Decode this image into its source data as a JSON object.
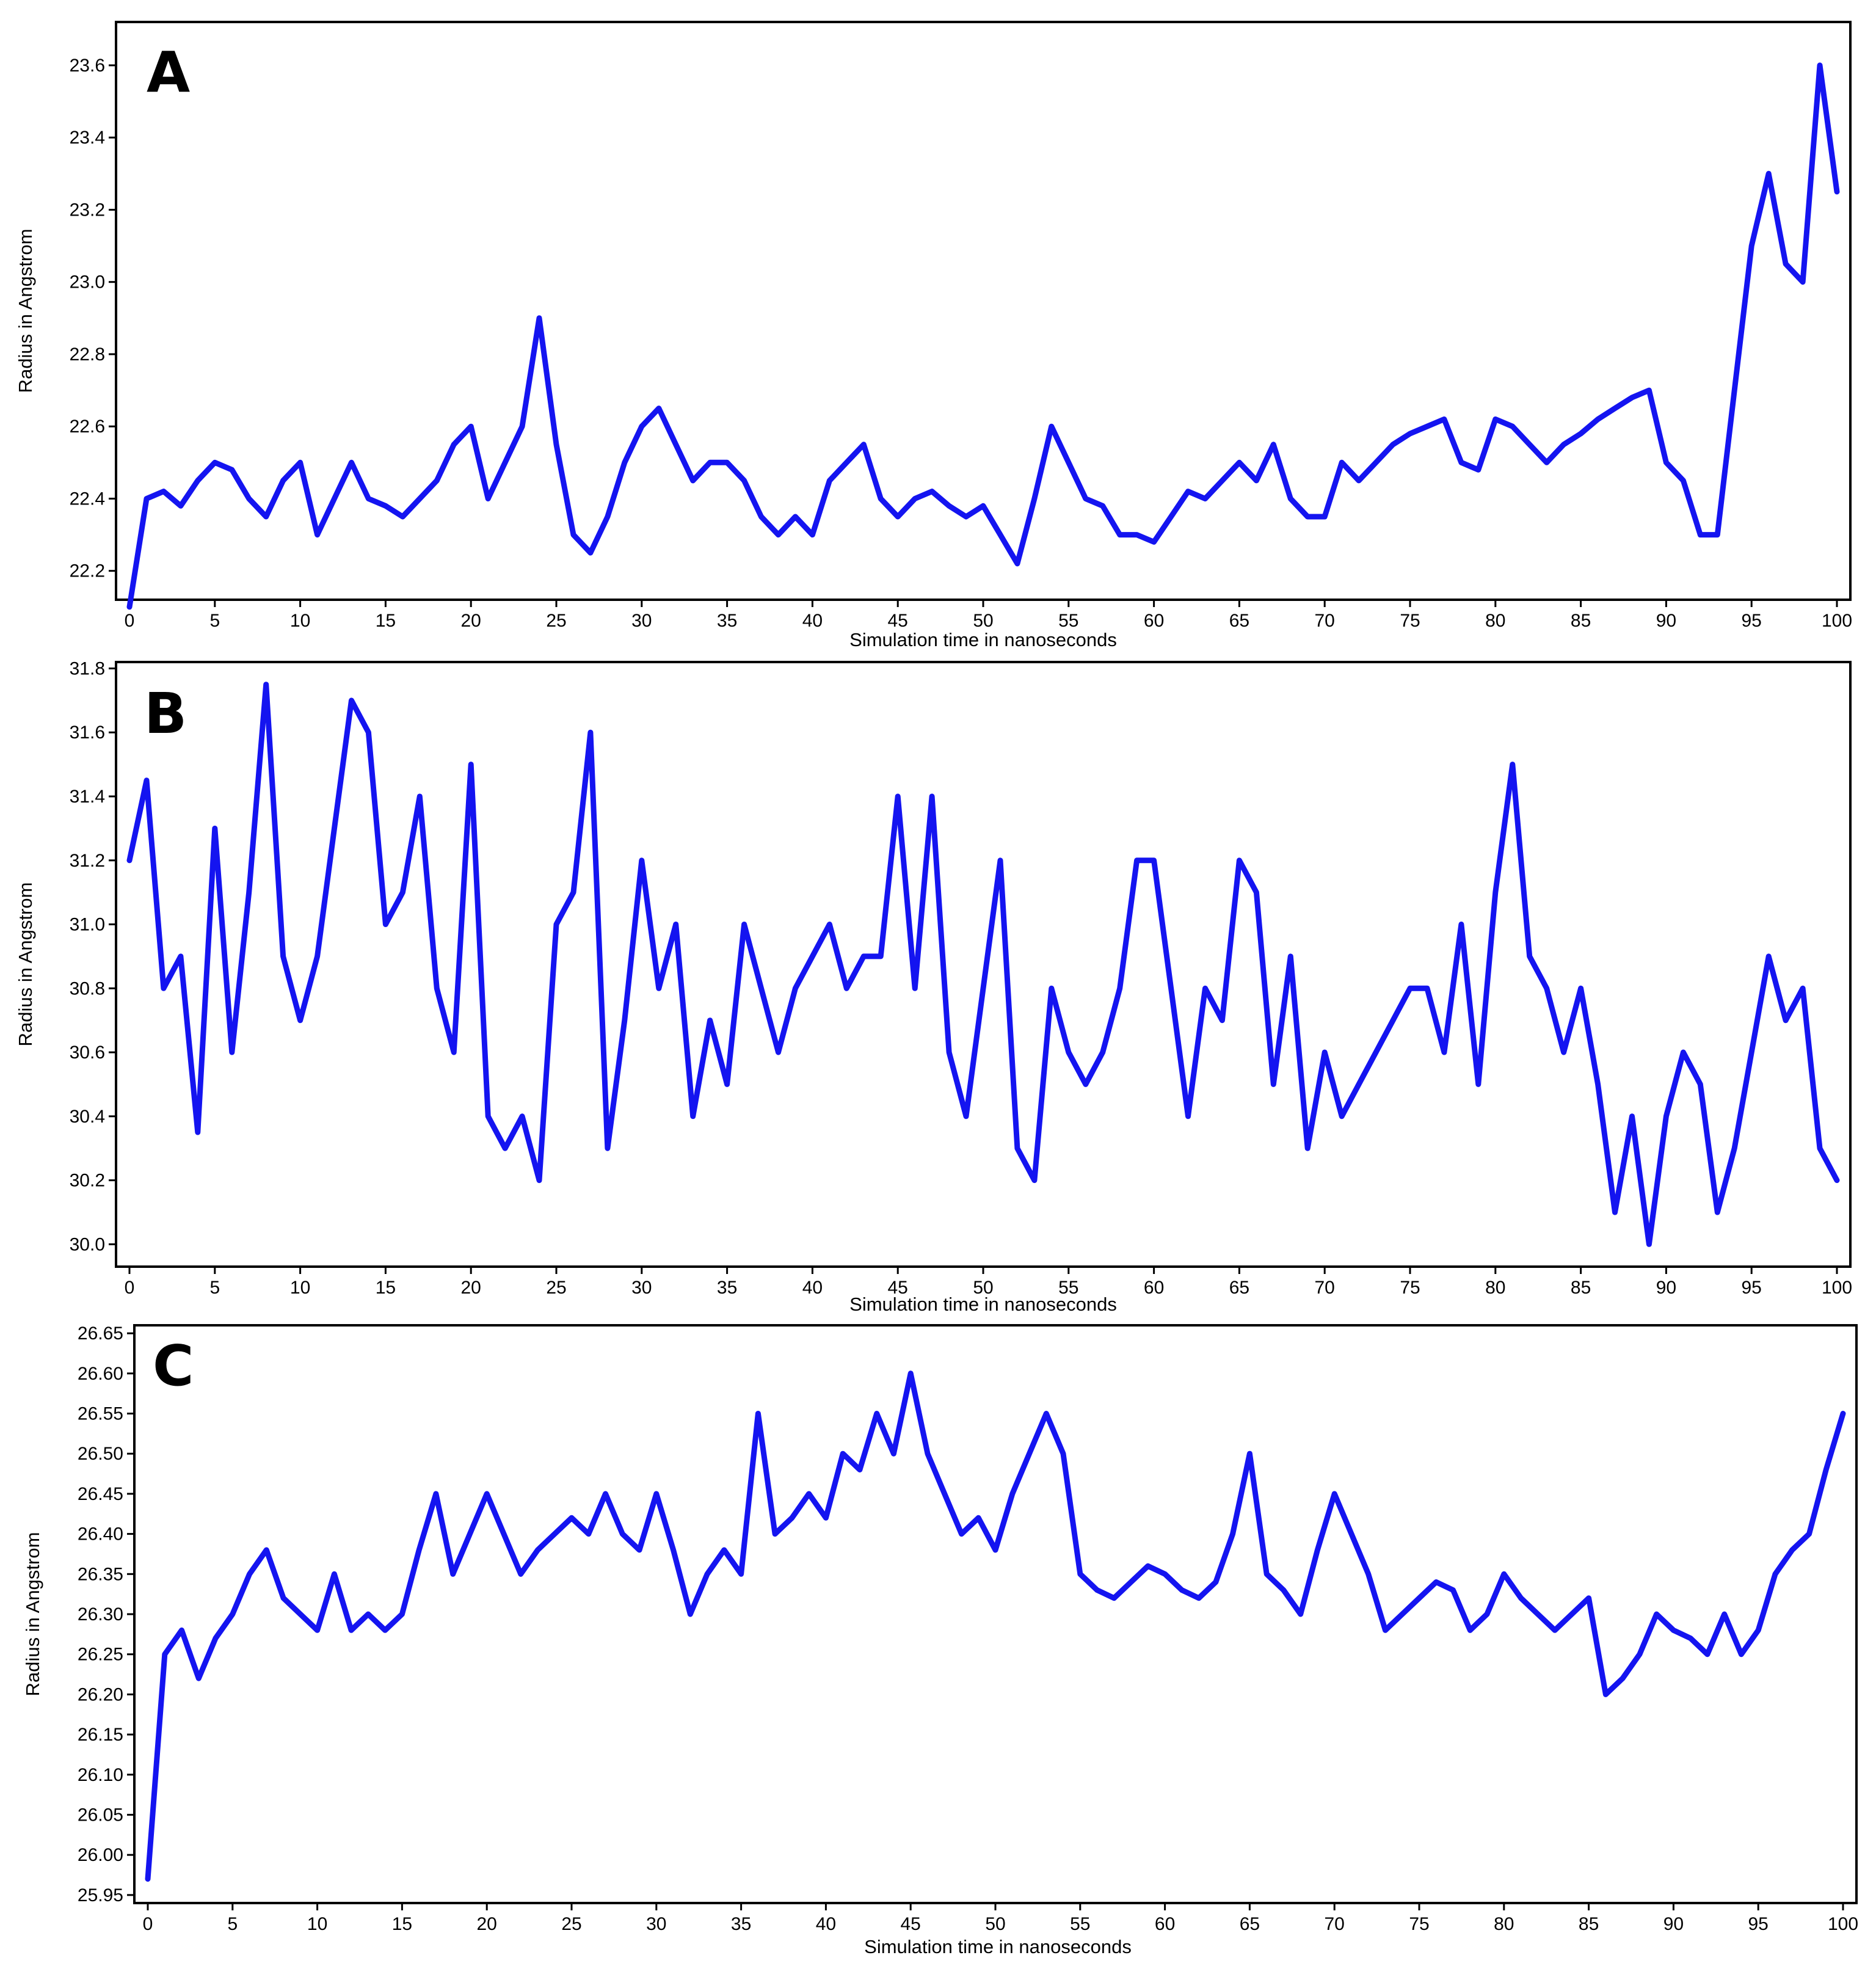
{
  "chart_data": [
    {
      "type": "line",
      "panel": "A",
      "xlabel": "Simulation time in nanoseconds",
      "ylabel": "Radius in Angstrom",
      "xlim": [
        0,
        100
      ],
      "ylim": [
        22.12,
        23.72
      ],
      "xticks": [
        0,
        5,
        10,
        15,
        20,
        25,
        30,
        35,
        40,
        45,
        50,
        55,
        60,
        65,
        70,
        75,
        80,
        85,
        90,
        95,
        100
      ],
      "yticks": [
        22.2,
        22.4,
        22.6,
        22.8,
        23.0,
        23.2,
        23.4,
        23.6
      ],
      "ytick_labels": [
        "22.2",
        "22.4",
        "22.6",
        "22.8",
        "23.0",
        "23.2",
        "23.4",
        "23.6"
      ],
      "grid": false,
      "line_color": "#1414f0",
      "series": [
        {
          "x": [
            0,
            1,
            2,
            3,
            4,
            5,
            6,
            7,
            8,
            9,
            10,
            11,
            12,
            13,
            14,
            15,
            16,
            17,
            18,
            19,
            20,
            21,
            22,
            23,
            24,
            25,
            26,
            27,
            28,
            29,
            30,
            31,
            32,
            33,
            34,
            35,
            36,
            37,
            38,
            39,
            40,
            41,
            42,
            43,
            44,
            45,
            46,
            47,
            48,
            49,
            50,
            51,
            52,
            53,
            54,
            55,
            56,
            57,
            58,
            59,
            60,
            61,
            62,
            63,
            64,
            65,
            66,
            67,
            68,
            69,
            70,
            71,
            72,
            73,
            74,
            75,
            76,
            77,
            78,
            79,
            80,
            81,
            82,
            83,
            84,
            85,
            86,
            87,
            88,
            89,
            90,
            91,
            92,
            93,
            94,
            95,
            96,
            97,
            98,
            99,
            100
          ],
          "y": [
            22.1,
            22.4,
            22.42,
            22.38,
            22.45,
            22.5,
            22.48,
            22.4,
            22.35,
            22.45,
            22.5,
            22.3,
            22.4,
            22.5,
            22.4,
            22.38,
            22.35,
            22.4,
            22.45,
            22.55,
            22.6,
            22.4,
            22.5,
            22.6,
            22.9,
            22.55,
            22.3,
            22.25,
            22.35,
            22.5,
            22.6,
            22.65,
            22.55,
            22.45,
            22.5,
            22.5,
            22.45,
            22.35,
            22.3,
            22.35,
            22.3,
            22.45,
            22.5,
            22.55,
            22.4,
            22.35,
            22.4,
            22.42,
            22.38,
            22.35,
            22.38,
            22.3,
            22.22,
            22.4,
            22.6,
            22.5,
            22.4,
            22.38,
            22.3,
            22.3,
            22.28,
            22.35,
            22.42,
            22.4,
            22.45,
            22.5,
            22.45,
            22.55,
            22.4,
            22.35,
            22.35,
            22.5,
            22.45,
            22.5,
            22.55,
            22.58,
            22.6,
            22.62,
            22.5,
            22.48,
            22.62,
            22.6,
            22.55,
            22.5,
            22.55,
            22.58,
            22.62,
            22.65,
            22.68,
            22.7,
            22.5,
            22.45,
            22.3,
            22.3,
            22.7,
            23.1,
            23.3,
            23.05,
            23.0,
            23.6,
            23.25
          ]
        }
      ]
    },
    {
      "type": "line",
      "panel": "B",
      "xlabel": "Simulation time in nanoseconds",
      "ylabel": "Radius in Angstrom",
      "xlim": [
        0,
        100
      ],
      "ylim": [
        29.93,
        31.82
      ],
      "xticks": [
        0,
        5,
        10,
        15,
        20,
        25,
        30,
        35,
        40,
        45,
        50,
        55,
        60,
        65,
        70,
        75,
        80,
        85,
        90,
        95,
        100
      ],
      "yticks": [
        30.0,
        30.2,
        30.4,
        30.6,
        30.8,
        31.0,
        31.2,
        31.4,
        31.6,
        31.8
      ],
      "ytick_labels": [
        "30.0",
        "30.2",
        "30.4",
        "30.6",
        "30.8",
        "31.0",
        "31.2",
        "31.4",
        "31.6",
        "31.8"
      ],
      "grid": false,
      "line_color": "#1414f0",
      "series": [
        {
          "x": [
            0,
            1,
            2,
            3,
            4,
            5,
            6,
            7,
            8,
            9,
            10,
            11,
            12,
            13,
            14,
            15,
            16,
            17,
            18,
            19,
            20,
            21,
            22,
            23,
            24,
            25,
            26,
            27,
            28,
            29,
            30,
            31,
            32,
            33,
            34,
            35,
            36,
            37,
            38,
            39,
            40,
            41,
            42,
            43,
            44,
            45,
            46,
            47,
            48,
            49,
            50,
            51,
            52,
            53,
            54,
            55,
            56,
            57,
            58,
            59,
            60,
            61,
            62,
            63,
            64,
            65,
            66,
            67,
            68,
            69,
            70,
            71,
            72,
            73,
            74,
            75,
            76,
            77,
            78,
            79,
            80,
            81,
            82,
            83,
            84,
            85,
            86,
            87,
            88,
            89,
            90,
            91,
            92,
            93,
            94,
            95,
            96,
            97,
            98,
            99,
            100
          ],
          "y": [
            31.2,
            31.45,
            30.8,
            30.9,
            30.35,
            31.3,
            30.6,
            31.1,
            31.75,
            30.9,
            30.7,
            30.9,
            31.3,
            31.7,
            31.6,
            31.0,
            31.1,
            31.4,
            30.8,
            30.6,
            31.5,
            30.4,
            30.3,
            30.4,
            30.2,
            31.0,
            31.1,
            31.6,
            30.3,
            30.7,
            31.2,
            30.8,
            31.0,
            30.4,
            30.7,
            30.5,
            31.0,
            30.8,
            30.6,
            30.8,
            30.9,
            31.0,
            30.8,
            30.9,
            30.9,
            31.4,
            30.8,
            31.4,
            30.6,
            30.4,
            30.8,
            31.2,
            30.3,
            30.2,
            30.8,
            30.6,
            30.5,
            30.6,
            30.8,
            31.2,
            31.2,
            30.8,
            30.4,
            30.8,
            30.7,
            31.2,
            31.1,
            30.5,
            30.9,
            30.3,
            30.6,
            30.4,
            30.5,
            30.6,
            30.7,
            30.8,
            30.8,
            30.6,
            31.0,
            30.5,
            31.1,
            31.5,
            30.9,
            30.8,
            30.6,
            30.8,
            30.5,
            30.1,
            30.4,
            30.0,
            30.4,
            30.6,
            30.5,
            30.1,
            30.3,
            30.6,
            30.9,
            30.7,
            30.8,
            30.3,
            30.2
          ]
        }
      ]
    },
    {
      "type": "line",
      "panel": "C",
      "xlabel": "Simulation time in nanoseconds",
      "ylabel": "Radius in Angstrom",
      "xlim": [
        0,
        100
      ],
      "ylim": [
        25.94,
        26.66
      ],
      "xticks": [
        0,
        5,
        10,
        15,
        20,
        25,
        30,
        35,
        40,
        45,
        50,
        55,
        60,
        65,
        70,
        75,
        80,
        85,
        90,
        95,
        100
      ],
      "yticks": [
        25.95,
        26.0,
        26.05,
        26.1,
        26.15,
        26.2,
        26.25,
        26.3,
        26.35,
        26.4,
        26.45,
        26.5,
        26.55,
        26.6,
        26.65
      ],
      "ytick_labels": [
        "25.95",
        "26.00",
        "26.05",
        "26.10",
        "26.15",
        "26.20",
        "26.25",
        "26.30",
        "26.35",
        "26.40",
        "26.45",
        "26.50",
        "26.55",
        "26.60",
        "26.65"
      ],
      "grid": false,
      "line_color": "#1414f0",
      "series": [
        {
          "x": [
            0,
            1,
            2,
            3,
            4,
            5,
            6,
            7,
            8,
            9,
            10,
            11,
            12,
            13,
            14,
            15,
            16,
            17,
            18,
            19,
            20,
            21,
            22,
            23,
            24,
            25,
            26,
            27,
            28,
            29,
            30,
            31,
            32,
            33,
            34,
            35,
            36,
            37,
            38,
            39,
            40,
            41,
            42,
            43,
            44,
            45,
            46,
            47,
            48,
            49,
            50,
            51,
            52,
            53,
            54,
            55,
            56,
            57,
            58,
            59,
            60,
            61,
            62,
            63,
            64,
            65,
            66,
            67,
            68,
            69,
            70,
            71,
            72,
            73,
            74,
            75,
            76,
            77,
            78,
            79,
            80,
            81,
            82,
            83,
            84,
            85,
            86,
            87,
            88,
            89,
            90,
            91,
            92,
            93,
            94,
            95,
            96,
            97,
            98,
            99,
            100
          ],
          "y": [
            25.97,
            26.25,
            26.28,
            26.22,
            26.27,
            26.3,
            26.35,
            26.38,
            26.32,
            26.3,
            26.28,
            26.35,
            26.28,
            26.3,
            26.28,
            26.3,
            26.38,
            26.45,
            26.35,
            26.4,
            26.45,
            26.4,
            26.35,
            26.38,
            26.4,
            26.42,
            26.4,
            26.45,
            26.4,
            26.38,
            26.45,
            26.38,
            26.3,
            26.35,
            26.38,
            26.35,
            26.55,
            26.4,
            26.42,
            26.45,
            26.42,
            26.5,
            26.48,
            26.55,
            26.5,
            26.6,
            26.5,
            26.45,
            26.4,
            26.42,
            26.38,
            26.45,
            26.5,
            26.55,
            26.5,
            26.35,
            26.33,
            26.32,
            26.34,
            26.36,
            26.35,
            26.33,
            26.32,
            26.34,
            26.4,
            26.5,
            26.35,
            26.33,
            26.3,
            26.38,
            26.45,
            26.4,
            26.35,
            26.28,
            26.3,
            26.32,
            26.34,
            26.33,
            26.28,
            26.3,
            26.35,
            26.32,
            26.3,
            26.28,
            26.3,
            26.32,
            26.2,
            26.22,
            26.25,
            26.3,
            26.28,
            26.27,
            26.25,
            26.3,
            26.25,
            26.28,
            26.35,
            26.38,
            26.4,
            26.48,
            26.55
          ]
        }
      ]
    }
  ],
  "panel_labels": [
    "A",
    "B",
    "C"
  ]
}
